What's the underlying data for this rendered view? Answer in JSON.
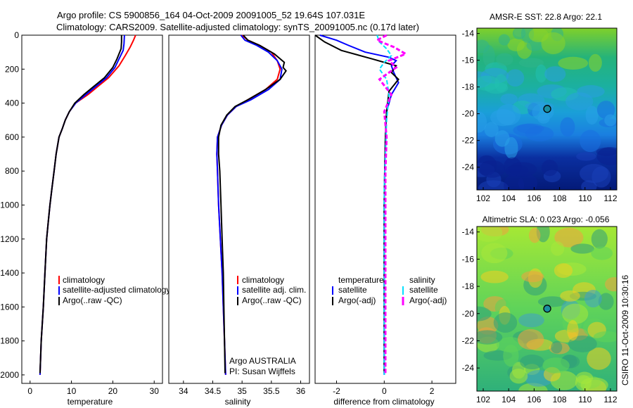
{
  "title_line1": "Argo profile: CS 5900856_164 04-Oct-2009 20091005_52 19.64S 107.031E",
  "title_line2": "Climatology: CARS2009. Satellite-adjusted climatology: synTS_20091005.nc (0.17d later)",
  "colors": {
    "climatology": "#ff0000",
    "satellite": "#0000ff",
    "argo": "#000000",
    "salinity_satellite": "#00e0ff",
    "salinity_argo": "#ff00ff"
  },
  "chart_data": [
    {
      "type": "line",
      "id": "temperature",
      "xlabel": "temperature",
      "xlim": [
        -2,
        32
      ],
      "ylim": [
        0,
        2050
      ],
      "y_reversed": true,
      "xticks": [
        0,
        10,
        20,
        30
      ],
      "yticks": [
        0,
        200,
        400,
        600,
        800,
        1000,
        1200,
        1400,
        1600,
        1800,
        2000
      ],
      "legend": [
        "climatology",
        "satellite-adjusted climatology",
        "Argo(..raw -QC)"
      ],
      "series": [
        {
          "name": "climatology",
          "color": "#ff0000",
          "points": [
            [
              25.5,
              0
            ],
            [
              25.0,
              30
            ],
            [
              24.2,
              70
            ],
            [
              23.0,
              120
            ],
            [
              21.5,
              180
            ],
            [
              19.0,
              250
            ],
            [
              16.5,
              300
            ],
            [
              14.0,
              350
            ],
            [
              11.0,
              400
            ],
            [
              9.5,
              450
            ],
            [
              8.5,
              500
            ],
            [
              7.8,
              550
            ],
            [
              7.0,
              600
            ],
            [
              6.3,
              700
            ],
            [
              5.8,
              800
            ],
            [
              5.3,
              900
            ],
            [
              4.8,
              1000
            ],
            [
              4.4,
              1100
            ],
            [
              4.0,
              1200
            ],
            [
              3.6,
              1400
            ],
            [
              3.2,
              1600
            ],
            [
              2.7,
              1800
            ],
            [
              2.4,
              2000
            ]
          ]
        },
        {
          "name": "satellite",
          "color": "#0000ff",
          "points": [
            [
              22.8,
              0
            ],
            [
              22.7,
              50
            ],
            [
              22.5,
              90
            ],
            [
              21.5,
              140
            ],
            [
              20.5,
              190
            ],
            [
              18.5,
              250
            ],
            [
              16.0,
              300
            ],
            [
              13.5,
              350
            ],
            [
              11.0,
              400
            ],
            [
              9.5,
              450
            ],
            [
              8.5,
              500
            ],
            [
              7.8,
              550
            ],
            [
              7.0,
              600
            ],
            [
              6.3,
              700
            ],
            [
              5.8,
              800
            ],
            [
              5.3,
              900
            ],
            [
              4.8,
              1000
            ],
            [
              4.4,
              1100
            ],
            [
              4.0,
              1200
            ],
            [
              3.6,
              1400
            ],
            [
              3.2,
              1600
            ],
            [
              2.7,
              1800
            ],
            [
              2.4,
              2000
            ]
          ]
        },
        {
          "name": "Argo",
          "color": "#000000",
          "points": [
            [
              22.1,
              0
            ],
            [
              22.1,
              40
            ],
            [
              22.0,
              80
            ],
            [
              21.0,
              140
            ],
            [
              20.0,
              190
            ],
            [
              18.0,
              250
            ],
            [
              15.5,
              300
            ],
            [
              13.0,
              350
            ],
            [
              10.8,
              400
            ],
            [
              9.5,
              450
            ],
            [
              8.5,
              500
            ],
            [
              7.8,
              550
            ],
            [
              7.0,
              600
            ],
            [
              6.3,
              700
            ],
            [
              5.8,
              800
            ],
            [
              5.3,
              900
            ],
            [
              4.8,
              1000
            ],
            [
              4.4,
              1100
            ],
            [
              4.0,
              1200
            ],
            [
              3.6,
              1400
            ],
            [
              3.2,
              1600
            ],
            [
              2.7,
              1800
            ],
            [
              2.4,
              1990
            ]
          ]
        }
      ]
    },
    {
      "type": "line",
      "id": "salinity",
      "xlabel": "salinity",
      "xlim": [
        33.75,
        36.15
      ],
      "ylim": [
        0,
        2050
      ],
      "y_reversed": true,
      "xticks": [
        34,
        34.5,
        35,
        35.5,
        36
      ],
      "legend": [
        "climatology",
        "satellite adj. clim.",
        "Argo(..raw -QC)"
      ],
      "annotation": [
        "Argo AUSTRALIA",
        "PI: Susan Wijffels"
      ],
      "series": [
        {
          "name": "climatology",
          "color": "#ff0000",
          "points": [
            [
              35.0,
              0
            ],
            [
              35.1,
              30
            ],
            [
              35.3,
              60
            ],
            [
              35.5,
              100
            ],
            [
              35.6,
              150
            ],
            [
              35.65,
              200
            ],
            [
              35.6,
              260
            ],
            [
              35.4,
              320
            ],
            [
              35.1,
              380
            ],
            [
              34.9,
              420
            ],
            [
              34.75,
              470
            ],
            [
              34.65,
              530
            ],
            [
              34.58,
              600
            ],
            [
              34.57,
              700
            ],
            [
              34.58,
              800
            ],
            [
              34.6,
              1000
            ],
            [
              34.63,
              1200
            ],
            [
              34.66,
              1400
            ],
            [
              34.68,
              1600
            ],
            [
              34.7,
              1800
            ],
            [
              34.72,
              2000
            ]
          ]
        },
        {
          "name": "satellite",
          "color": "#0000ff",
          "points": [
            [
              34.98,
              0
            ],
            [
              35.05,
              30
            ],
            [
              35.25,
              60
            ],
            [
              35.45,
              100
            ],
            [
              35.6,
              150
            ],
            [
              35.68,
              200
            ],
            [
              35.65,
              260
            ],
            [
              35.45,
              320
            ],
            [
              35.15,
              380
            ],
            [
              34.9,
              420
            ],
            [
              34.75,
              470
            ],
            [
              34.65,
              530
            ],
            [
              34.58,
              600
            ],
            [
              34.57,
              700
            ],
            [
              34.58,
              800
            ],
            [
              34.6,
              1000
            ],
            [
              34.63,
              1200
            ],
            [
              34.66,
              1400
            ],
            [
              34.68,
              1600
            ],
            [
              34.7,
              1800
            ],
            [
              34.72,
              2000
            ]
          ]
        },
        {
          "name": "Argo",
          "color": "#000000",
          "points": [
            [
              35.02,
              0
            ],
            [
              35.1,
              30
            ],
            [
              35.3,
              60
            ],
            [
              35.55,
              110
            ],
            [
              35.72,
              160
            ],
            [
              35.7,
              190
            ],
            [
              35.75,
              210
            ],
            [
              35.65,
              260
            ],
            [
              35.4,
              320
            ],
            [
              35.1,
              380
            ],
            [
              34.88,
              420
            ],
            [
              34.74,
              470
            ],
            [
              34.64,
              530
            ],
            [
              34.6,
              600
            ],
            [
              34.6,
              700
            ],
            [
              34.62,
              800
            ],
            [
              34.64,
              1000
            ],
            [
              34.66,
              1200
            ],
            [
              34.68,
              1400
            ],
            [
              34.69,
              1600
            ],
            [
              34.7,
              1800
            ],
            [
              34.71,
              1990
            ]
          ]
        }
      ]
    },
    {
      "type": "line",
      "id": "difference",
      "xlabel": "difference from climatology",
      "xlim": [
        -2.9,
        3.0
      ],
      "ylim": [
        0,
        2050
      ],
      "y_reversed": true,
      "xticks": [
        -2,
        0,
        2
      ],
      "legend_temperature": [
        "temperature",
        "satellite",
        "Argo(-adj)"
      ],
      "legend_salinity": [
        "salinity",
        "satellite",
        "Argo(-adj)"
      ],
      "series": [
        {
          "name": "temperature satellite",
          "color": "#0000ff",
          "points": [
            [
              -2.7,
              0
            ],
            [
              -2.0,
              30
            ],
            [
              -1.5,
              60
            ],
            [
              -0.8,
              100
            ],
            [
              0.2,
              130
            ],
            [
              0.5,
              150
            ],
            [
              0.3,
              180
            ],
            [
              0.4,
              220
            ],
            [
              0.6,
              280
            ],
            [
              0.3,
              350
            ],
            [
              0.1,
              450
            ],
            [
              0.05,
              600
            ],
            [
              0.02,
              800
            ],
            [
              0.0,
              1000
            ],
            [
              0.0,
              1500
            ],
            [
              0.0,
              2000
            ]
          ]
        },
        {
          "name": "temperature Argo",
          "color": "#000000",
          "points": [
            [
              -2.9,
              0
            ],
            [
              -2.5,
              40
            ],
            [
              -1.8,
              90
            ],
            [
              -0.5,
              140
            ],
            [
              0.5,
              180
            ],
            [
              0.3,
              220
            ],
            [
              0.6,
              260
            ],
            [
              0.2,
              330
            ],
            [
              0.1,
              450
            ],
            [
              0.05,
              600
            ],
            [
              0.02,
              800
            ],
            [
              0.0,
              1000
            ],
            [
              0.0,
              1500
            ],
            [
              0.0,
              1990
            ]
          ]
        },
        {
          "name": "salinity satellite",
          "color": "#00e0ff",
          "points": [
            [
              -0.3,
              0
            ],
            [
              -0.2,
              40
            ],
            [
              0.1,
              80
            ],
            [
              0.3,
              120
            ],
            [
              0.0,
              160
            ],
            [
              -0.2,
              200
            ],
            [
              0.1,
              260
            ],
            [
              0.2,
              350
            ],
            [
              0.1,
              500
            ],
            [
              0.05,
              700
            ],
            [
              0.0,
              900
            ],
            [
              0.0,
              1500
            ],
            [
              0.0,
              2000
            ]
          ]
        },
        {
          "name": "salinity Argo",
          "color": "#ff00ff",
          "points": [
            [
              0.1,
              0
            ],
            [
              -0.3,
              30
            ],
            [
              0.4,
              70
            ],
            [
              0.9,
              110
            ],
            [
              0.2,
              150
            ],
            [
              0.5,
              190
            ],
            [
              -0.2,
              260
            ],
            [
              0.3,
              350
            ],
            [
              0.0,
              450
            ],
            [
              0.1,
              600
            ],
            [
              0.05,
              800
            ],
            [
              0.05,
              1000
            ],
            [
              0.05,
              1500
            ],
            [
              0.05,
              2000
            ]
          ]
        }
      ]
    },
    {
      "type": "heatmap",
      "id": "sst-map",
      "title": "AMSR-E SST: 22.8 Argo: 22.1",
      "xlim": [
        101.5,
        112.5
      ],
      "ylim": [
        -25.7,
        -13.6
      ],
      "xticks": [
        102,
        104,
        106,
        108,
        110,
        112
      ],
      "yticks": [
        -14,
        -16,
        -18,
        -20,
        -22,
        -24
      ],
      "marker": [
        107.031,
        -19.64
      ]
    },
    {
      "type": "heatmap",
      "id": "sla-map",
      "title": "Altimetric SLA: 0.023 Argo: -0.056",
      "xlim": [
        101.5,
        112.5
      ],
      "ylim": [
        -25.7,
        -13.6
      ],
      "xticks": [
        102,
        104,
        106,
        108,
        110,
        112
      ],
      "yticks": [
        -14,
        -16,
        -18,
        -20,
        -22,
        -24
      ],
      "marker": [
        107.031,
        -19.64
      ]
    }
  ],
  "side_label": "CSIRO 11-Oct-2009 10:30:16"
}
